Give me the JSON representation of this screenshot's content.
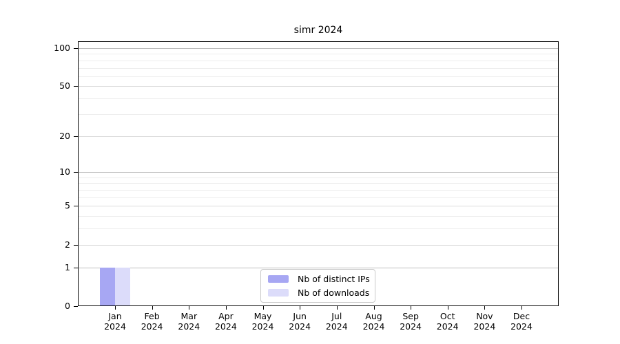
{
  "chart_data": {
    "type": "bar",
    "title": "simr 2024",
    "yscale": "log1p",
    "xlabel": "",
    "ylabel": "",
    "categories": [
      "Jan",
      "Feb",
      "Mar",
      "Apr",
      "May",
      "Jun",
      "Jul",
      "Aug",
      "Sep",
      "Oct",
      "Nov",
      "Dec"
    ],
    "category_year": "2024",
    "series": [
      {
        "name": "Nb of distinct IPs",
        "color": "#a7a7f3",
        "values": [
          1,
          0,
          0,
          0,
          0,
          0,
          0,
          0,
          0,
          0,
          0,
          0
        ]
      },
      {
        "name": "Nb of downloads",
        "color": "#dcdcfa",
        "values": [
          1,
          0,
          0,
          0,
          0,
          0,
          0,
          0,
          0,
          0,
          0,
          0
        ]
      }
    ],
    "yticks": [
      0,
      1,
      2,
      5,
      10,
      20,
      50,
      100
    ],
    "ylim": [
      0,
      113
    ],
    "gridlines": {
      "major": [
        1,
        10,
        100
      ],
      "mid": [
        2,
        5,
        20,
        50
      ],
      "minor": [
        3,
        4,
        6,
        7,
        8,
        9,
        30,
        40,
        60,
        70,
        80,
        90
      ]
    },
    "grid": "horizontal",
    "legend_position": "bottom-center"
  },
  "colors": {
    "background": "#ffffff",
    "axis": "#000000",
    "text": "#000000",
    "grid_major": "#bdbdbd",
    "grid_mid": "#dadada",
    "grid_minor": "#ededed",
    "legend_border": "#c9c9c9"
  }
}
